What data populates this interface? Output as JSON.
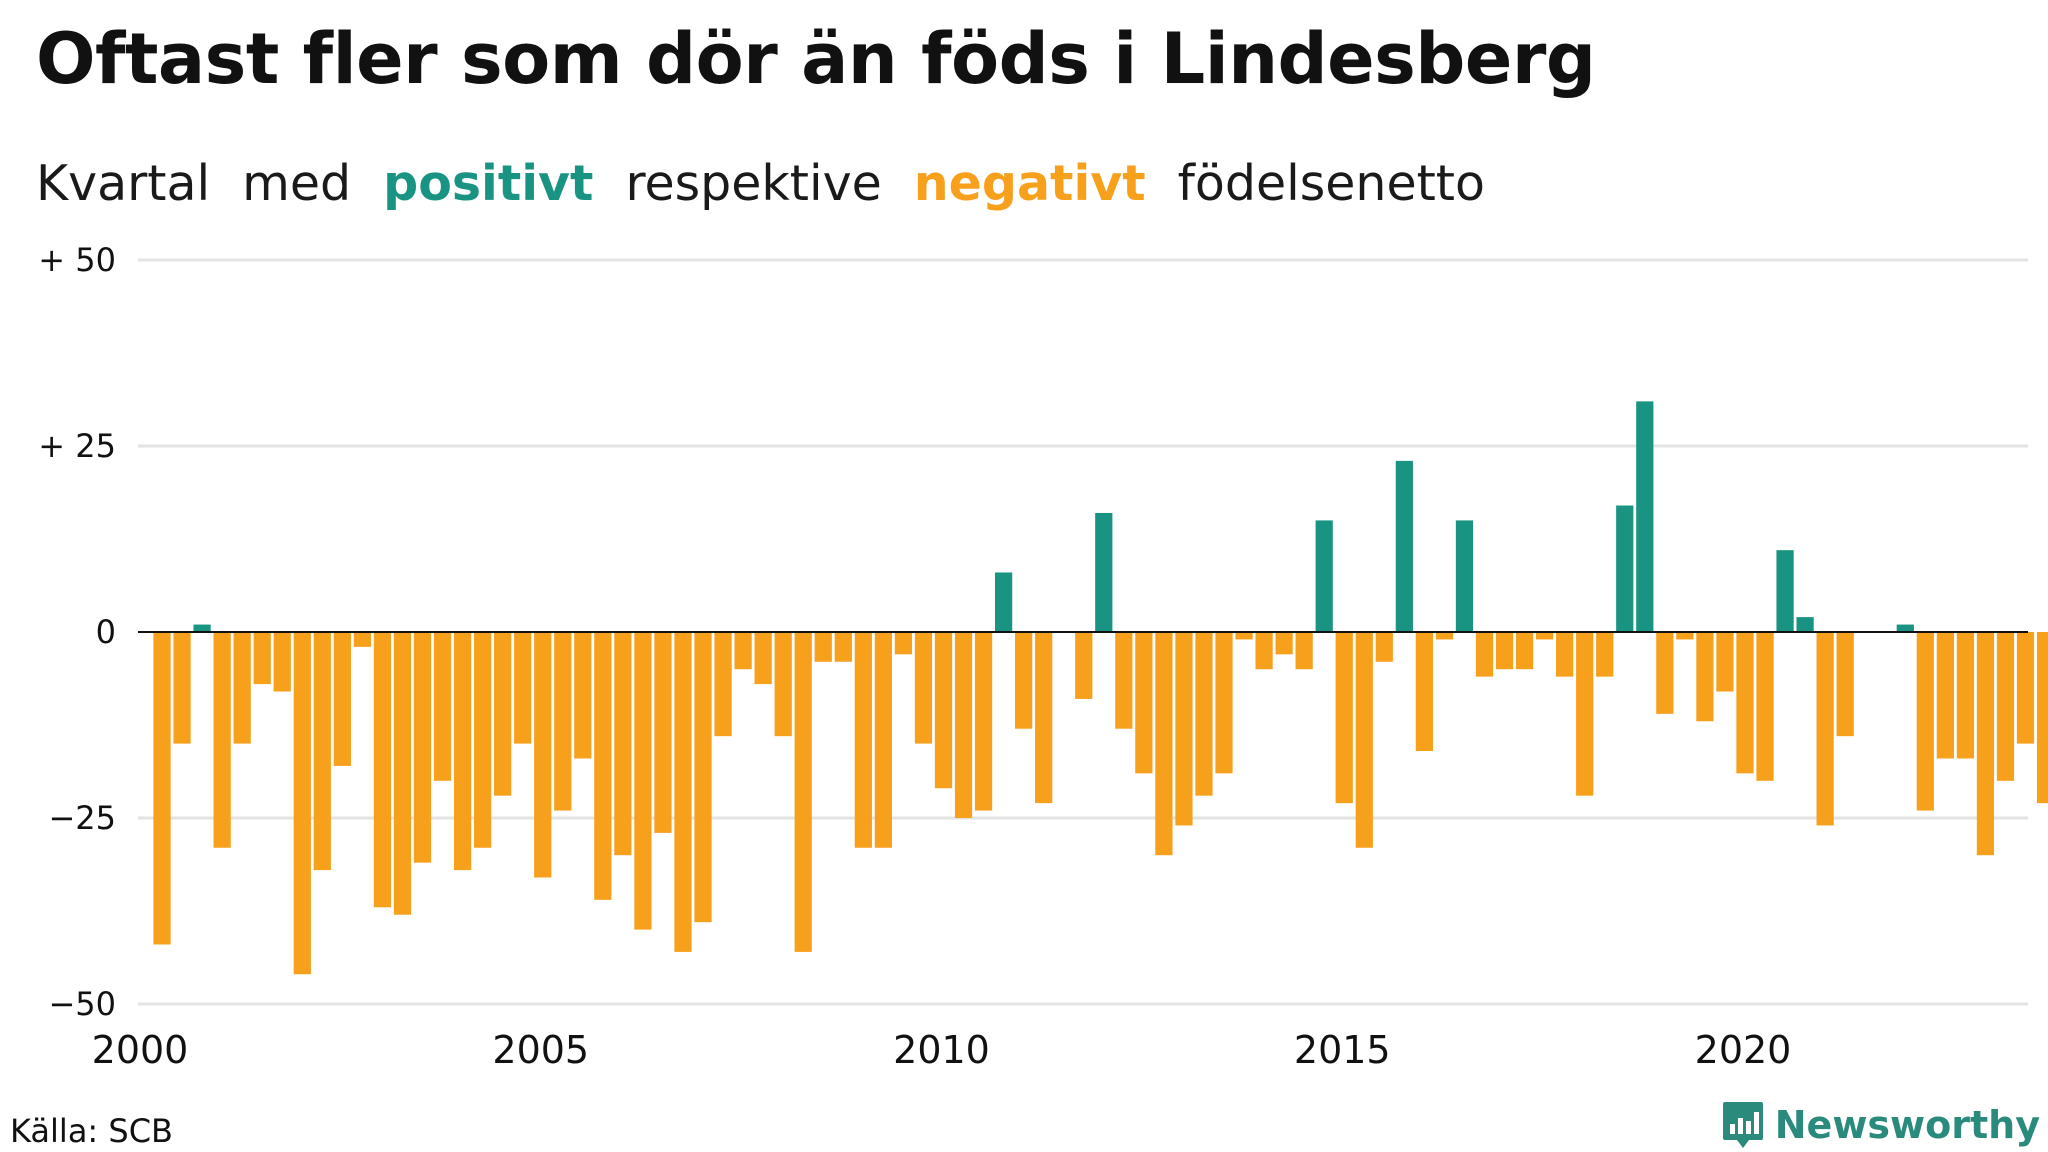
{
  "title": "Oftast fler som dör än föds i Lindesberg",
  "subtitle": {
    "part1": "Kvartal",
    "part2": "med",
    "positive": "positivt",
    "part3": "respektive",
    "negative": "negativt",
    "part4": "födelsenetto"
  },
  "source": "Källa: SCB",
  "brand": "Newsworthy",
  "colors": {
    "positive": "#1a9482",
    "negative": "#f7a01c",
    "grid": "#e3e3e3",
    "zero": "#111111"
  },
  "chart_data": {
    "type": "bar",
    "x_start": 2000.0,
    "x_step": 0.25,
    "xlim": [
      2000,
      2023.6
    ],
    "ylim": [
      -50,
      50
    ],
    "y_ticks": [
      50,
      25,
      0,
      -25,
      -50
    ],
    "y_tick_labels": [
      "+ 50",
      "+ 25",
      "0",
      "−25",
      "−50"
    ],
    "x_ticks": [
      2000,
      2005,
      2010,
      2015,
      2020
    ],
    "x_tick_labels": [
      "2000",
      "2005",
      "2010",
      "2015",
      "2020"
    ],
    "grid": true,
    "values": [
      -42,
      -15,
      1,
      -29,
      -15,
      -7,
      -8,
      -46,
      -32,
      -18,
      -2,
      -37,
      -38,
      -31,
      -20,
      -32,
      -29,
      -22,
      -15,
      -33,
      -24,
      -17,
      -36,
      -30,
      -40,
      -27,
      -43,
      -39,
      -14,
      -5,
      -7,
      -14,
      -43,
      -4,
      -4,
      -29,
      -29,
      -3,
      -15,
      -21,
      -25,
      -24,
      8,
      -13,
      -23,
      0,
      -9,
      16,
      -13,
      -19,
      -30,
      -26,
      -22,
      -19,
      -1,
      -5,
      -3,
      -5,
      15,
      -23,
      -29,
      -4,
      23,
      -16,
      -1,
      15,
      -6,
      -5,
      -5,
      -1,
      -6,
      -22,
      -6,
      17,
      31,
      -11,
      -1,
      -12,
      -8,
      -19,
      -20,
      11,
      2,
      -26,
      -14,
      0,
      0,
      1,
      -24,
      -17,
      -17,
      -30,
      -20,
      -15,
      -23
    ]
  }
}
